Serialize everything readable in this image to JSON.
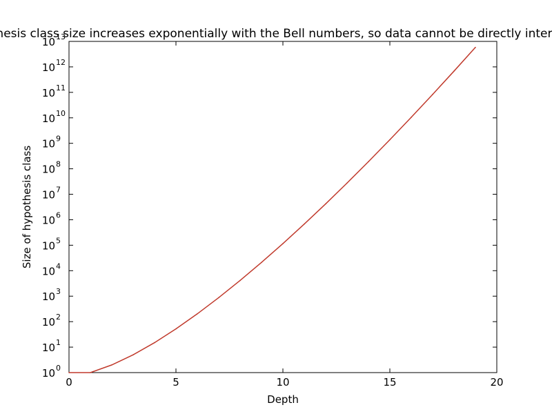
{
  "chart_data": {
    "type": "line",
    "title": "Hypothesis class size increases exponentially with the Bell numbers, so data cannot be directly interpreted",
    "xlabel": "Depth",
    "ylabel": "Size of hypothesis class",
    "xlim": [
      0,
      20
    ],
    "ylim": [
      1,
      10000000000000
    ],
    "yscale": "log",
    "grid": false,
    "x_ticks": [
      0,
      5,
      10,
      15,
      20
    ],
    "x_tick_labels": [
      "0",
      "5",
      "10",
      "15",
      "20"
    ],
    "y_tick_exponents": [
      0,
      1,
      2,
      3,
      4,
      5,
      6,
      7,
      8,
      9,
      10,
      11,
      12,
      13
    ],
    "y_tick_base": "10",
    "series": [
      {
        "color": "#c0392b",
        "x": [
          0,
          1,
          2,
          3,
          4,
          5,
          6,
          7,
          8,
          9,
          10,
          11,
          12,
          13,
          14,
          15,
          16,
          17,
          18,
          19
        ],
        "values": [
          1,
          1,
          2,
          5,
          15,
          52,
          203,
          877,
          4140,
          21147,
          115975,
          678570,
          4213597,
          27644437,
          190899322,
          1382958545,
          10480142147,
          82864869804,
          682076806159,
          5832742205057
        ]
      }
    ]
  }
}
